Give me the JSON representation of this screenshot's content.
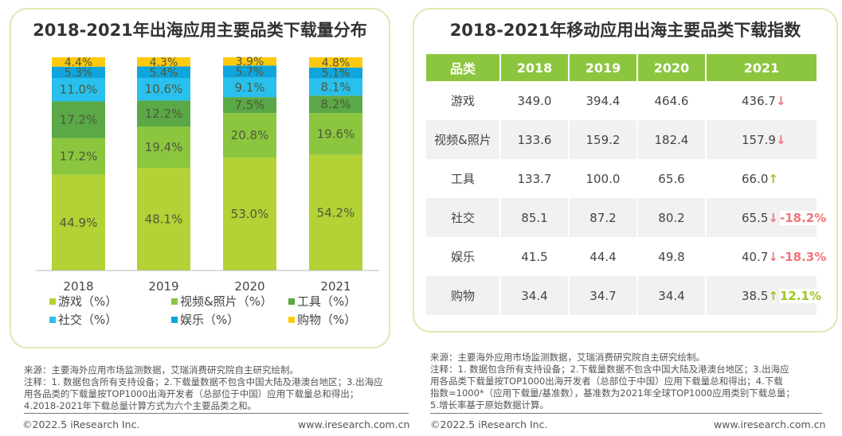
{
  "left": {
    "title": "2018-2021年出海应用主要品类下载量分布"
  },
  "chart_data": {
    "type": "bar",
    "stacked": true,
    "title": "2018-2021年出海应用主要品类下载量分布",
    "categories": [
      "2018",
      "2019",
      "2020",
      "2021"
    ],
    "series": [
      {
        "name": "游戏（%）",
        "color": "#b2d235",
        "values": [
          44.9,
          48.1,
          53.0,
          54.2
        ]
      },
      {
        "name": "视频&照片（%）",
        "color": "#8cc63f",
        "values": [
          17.2,
          19.4,
          20.8,
          19.6
        ]
      },
      {
        "name": "工具（%）",
        "color": "#5aa846",
        "values": [
          17.2,
          12.2,
          7.5,
          8.2
        ]
      },
      {
        "name": "社交（%）",
        "color": "#29c0ee",
        "values": [
          11.0,
          10.6,
          9.1,
          8.1
        ]
      },
      {
        "name": "娱乐（%）",
        "color": "#0ea5dd",
        "values": [
          5.3,
          5.4,
          5.7,
          5.1
        ]
      },
      {
        "name": "购物（%）",
        "color": "#ffc90e",
        "values": [
          4.4,
          4.3,
          3.9,
          4.8
        ]
      }
    ],
    "ylim": [
      0,
      100
    ],
    "legend": "bottom"
  },
  "right": {
    "title": "2018-2021年移动应用出海主要品类下载指数",
    "headers": [
      "品类",
      "2018",
      "2019",
      "2020",
      "2021"
    ],
    "rows": [
      {
        "cat": "游戏",
        "v": [
          "349.0",
          "394.4",
          "464.6",
          "436.7"
        ],
        "dir": "down",
        "chg": ""
      },
      {
        "cat": "视频&照片",
        "v": [
          "133.6",
          "159.2",
          "182.4",
          "157.9"
        ],
        "dir": "down",
        "chg": ""
      },
      {
        "cat": "工具",
        "v": [
          "133.7",
          "100.0",
          "65.6",
          "66.0"
        ],
        "dir": "up",
        "chg": ""
      },
      {
        "cat": "社交",
        "v": [
          "85.1",
          "87.2",
          "80.2",
          "65.5"
        ],
        "dir": "down",
        "chg": "-18.2%"
      },
      {
        "cat": "娱乐",
        "v": [
          "41.5",
          "44.4",
          "49.8",
          "40.7"
        ],
        "dir": "down",
        "chg": "-18.3%"
      },
      {
        "cat": "购物",
        "v": [
          "34.4",
          "34.7",
          "34.4",
          "38.5"
        ],
        "dir": "up",
        "chg": "12.1%"
      }
    ]
  },
  "notes": {
    "left": [
      "来源：主要海外应用市场监测数据，艾瑞消费研究院自主研究绘制。",
      "注释：1. 数据包含所有支持设备；2.下载量数据不包含中国大陆及港澳台地区；3.出海应",
      "用各品类的下载量按TOP1000出海开发者（总部位于中国）应用下载量总和得出；",
      "4.2018-2021年下载总量计算方式为六个主要品类之和。"
    ],
    "right": [
      "来源：主要海外应用市场监测数据，艾瑞消费研究院自主研究绘制。",
      "注释：1. 数据包含所有支持设备；2.下载量数据不包含中国大陆及港澳台地区；3.出海应",
      "用各品类下载量按TOP1000出海开发者（总部位于中国）应用下载量总和得出；4.下载",
      "指数=1000*（应用下载量/基准数），基准数为2021年全球TOP1000应用类别下载总量；",
      "5.增长率基于原始数据计算。"
    ]
  },
  "footer": {
    "copyright": "©2022.5 iResearch Inc.",
    "url": "www.iresearch.com.cn"
  },
  "colors": {
    "down": "#f0747a",
    "up": "#9cc81e",
    "header": "#8cc63f"
  }
}
